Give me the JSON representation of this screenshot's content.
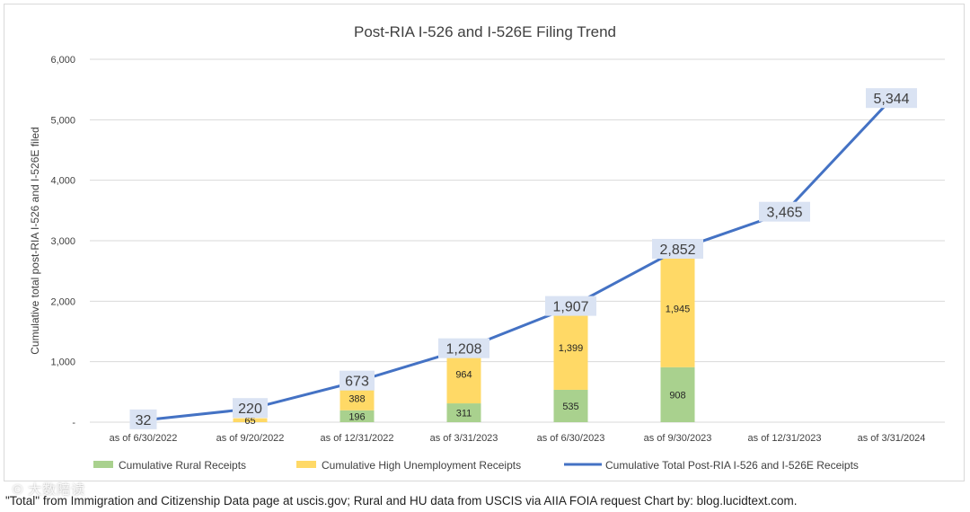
{
  "chart_data": {
    "type": "bar",
    "title": "Post-RIA I-526 and I-526E Filing Trend",
    "xlabel": "",
    "ylabel": "Cumulative total post-RIA I-526 and I-526E filed",
    "ylim": [
      0,
      6000
    ],
    "yticks": [
      0,
      1000,
      2000,
      3000,
      4000,
      5000,
      6000
    ],
    "ytick_labels": [
      "-",
      "1,000",
      "2,000",
      "3,000",
      "4,000",
      "5,000",
      "6,000"
    ],
    "categories": [
      "as of 6/30/2022",
      "as of 9/20/2022",
      "as of 12/31/2022",
      "as of 3/31/2023",
      "as of 6/30/2023",
      "as of 9/30/2023",
      "as of 12/31/2023",
      "as of 3/31/2024"
    ],
    "series": [
      {
        "name": "Cumulative Rural Receipts",
        "kind": "bar",
        "color": "#a9d18e",
        "values": [
          null,
          null,
          196,
          311,
          535,
          908,
          null,
          null
        ],
        "labels": [
          "",
          "",
          "196",
          "311",
          "535",
          "908",
          "",
          ""
        ]
      },
      {
        "name": "Cumulative High Unemployment Receipts",
        "kind": "bar",
        "color": "#ffd966",
        "values": [
          null,
          65,
          388,
          964,
          1399,
          1945,
          null,
          null
        ],
        "labels": [
          "",
          "65",
          "388",
          "964",
          "1,399",
          "1,945",
          "",
          ""
        ]
      },
      {
        "name": "Cumulative Total Post-RIA I-526 and I-526E Receipts",
        "kind": "line",
        "color": "#4472c4",
        "values": [
          32,
          220,
          673,
          1208,
          1907,
          2852,
          3465,
          5344
        ],
        "labels": [
          "32",
          "220",
          "673",
          "1,208",
          "1,907",
          "2,852",
          "3,465",
          "5,344"
        ]
      }
    ],
    "legend_position": "bottom",
    "grid": true
  },
  "caption": "\"Total\" from Immigration and Citizenship Data page at uscis.gov; Rural and HU data from USCIS via AIIA FOIA request Chart by: blog.lucidtext.com.",
  "watermark": "© 大数陪读"
}
